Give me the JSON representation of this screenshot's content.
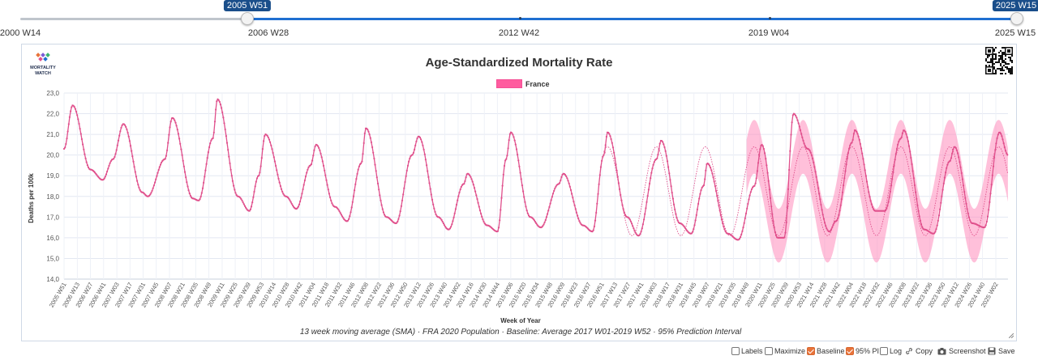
{
  "slider": {
    "start_value": "2005 W51",
    "end_value": "2025 W15",
    "axis_labels": [
      "2000 W14",
      "2006 W28",
      "2012 W42",
      "2019 W04",
      "2025 W15"
    ]
  },
  "logo": {
    "line1": "MORTALITY",
    "line2": "WATCH"
  },
  "footer_controls": {
    "labels": "Labels",
    "maximize": "Maximize",
    "baseline": "Baseline",
    "pi": "95% PI",
    "log": "Log",
    "copy": "Copy",
    "screenshot": "Screenshot",
    "save": "Save",
    "baseline_checked": true,
    "pi_checked": true
  },
  "colors": {
    "series": "#e0508c",
    "band": "#ff8cbc",
    "accent": "#1f6fd1",
    "checkbox": "#e8733a"
  },
  "chart_data": {
    "type": "line",
    "title": "Age-Standardized Mortality Rate",
    "subtitle": "13 week moving average (SMA) · FRA 2020 Population · Baseline: Average 2017 W01-2019 W52 · 95% Prediction Interval",
    "xlabel": "Week of Year",
    "ylabel": "Deaths per 100k",
    "ylim": [
      14.0,
      23.0
    ],
    "yticks": [
      "14,0",
      "15,0",
      "16,0",
      "17,0",
      "18,0",
      "19,0",
      "20,0",
      "21,0",
      "22,0",
      "23,0"
    ],
    "grid": true,
    "legend_position": "top-center",
    "x_start": "2005 W51",
    "x_end": "2025 W15",
    "xtick_labels": [
      "2005 W51",
      "2006 W13",
      "2006 W27",
      "2006 W41",
      "2007 W03",
      "2007 W17",
      "2007 W31",
      "2007 W45",
      "2008 W07",
      "2008 W21",
      "2008 W35",
      "2008 W49",
      "2009 W11",
      "2009 W25",
      "2009 W39",
      "2009 W53",
      "2010 W14",
      "2010 W28",
      "2010 W42",
      "2011 W04",
      "2011 W18",
      "2011 W32",
      "2011 W46",
      "2012 W08",
      "2012 W22",
      "2012 W36",
      "2012 W50",
      "2013 W12",
      "2013 W26",
      "2013 W40",
      "2014 W02",
      "2014 W16",
      "2014 W30",
      "2014 W44",
      "2015 W06",
      "2015 W20",
      "2015 W34",
      "2015 W48",
      "2016 W09",
      "2016 W23",
      "2016 W37",
      "2016 W51",
      "2017 W13",
      "2017 W27",
      "2017 W41",
      "2018 W03",
      "2018 W17",
      "2018 W31",
      "2018 W45",
      "2019 W07",
      "2019 W21",
      "2019 W35",
      "2019 W49",
      "2020 W11",
      "2020 W25",
      "2020 W39",
      "2020 W53",
      "2021 W14",
      "2021 W28",
      "2021 W42",
      "2022 W04",
      "2022 W18",
      "2022 W32",
      "2022 W46",
      "2023 W08",
      "2023 W22",
      "2023 W36",
      "2023 W50",
      "2024 W12",
      "2024 W26",
      "2024 W40",
      "2025 W02"
    ],
    "series": [
      {
        "name": "France",
        "keypoints": [
          [
            "2005 W51",
            20.3
          ],
          [
            "2006 W08",
            22.4
          ],
          [
            "2006 W27",
            19.3
          ],
          [
            "2006 W40",
            18.8
          ],
          [
            "2006 W51",
            19.8
          ],
          [
            "2007 W10",
            21.5
          ],
          [
            "2007 W30",
            18.2
          ],
          [
            "2007 W36",
            18.0
          ],
          [
            "2008 W02",
            19.8
          ],
          [
            "2008 W10",
            21.8
          ],
          [
            "2008 W32",
            17.9
          ],
          [
            "2008 W38",
            17.8
          ],
          [
            "2009 W01",
            20.8
          ],
          [
            "2009 W06",
            22.7
          ],
          [
            "2009 W28",
            18.0
          ],
          [
            "2009 W40",
            17.3
          ],
          [
            "2009 W50",
            19.0
          ],
          [
            "2010 W05",
            21.0
          ],
          [
            "2010 W27",
            18.0
          ],
          [
            "2010 W38",
            17.4
          ],
          [
            "2011 W01",
            19.5
          ],
          [
            "2011 W07",
            20.5
          ],
          [
            "2011 W27",
            17.5
          ],
          [
            "2011 W40",
            16.8
          ],
          [
            "2012 W03",
            19.6
          ],
          [
            "2012 W08",
            21.3
          ],
          [
            "2012 W30",
            17.0
          ],
          [
            "2012 W40",
            16.7
          ],
          [
            "2013 W05",
            20.0
          ],
          [
            "2013 W12",
            20.9
          ],
          [
            "2013 W33",
            17.0
          ],
          [
            "2013 W44",
            16.4
          ],
          [
            "2014 W08",
            18.6
          ],
          [
            "2014 W12",
            19.1
          ],
          [
            "2014 W33",
            16.6
          ],
          [
            "2014 W44",
            16.3
          ],
          [
            "2015 W01",
            19.8
          ],
          [
            "2015 W06",
            21.1
          ],
          [
            "2015 W27",
            17.0
          ],
          [
            "2015 W38",
            16.5
          ],
          [
            "2016 W05",
            18.6
          ],
          [
            "2016 W10",
            19.1
          ],
          [
            "2016 W31",
            16.6
          ],
          [
            "2016 W41",
            16.3
          ],
          [
            "2017 W01",
            20.0
          ],
          [
            "2017 W05",
            21.1
          ],
          [
            "2017 W26",
            17.0
          ],
          [
            "2017 W38",
            16.1
          ],
          [
            "2018 W05",
            19.8
          ],
          [
            "2018 W10",
            20.7
          ],
          [
            "2018 W30",
            16.7
          ],
          [
            "2018 W42",
            16.2
          ],
          [
            "2019 W03",
            18.5
          ],
          [
            "2019 W07",
            19.6
          ],
          [
            "2019 W29",
            16.2
          ],
          [
            "2019 W40",
            15.9
          ],
          [
            "2020 W05",
            18.5
          ],
          [
            "2020 W13",
            20.5
          ],
          [
            "2020 W30",
            16.0
          ],
          [
            "2020 W37",
            16.0
          ],
          [
            "2020 W47",
            22.0
          ],
          [
            "2021 W10",
            20.3
          ],
          [
            "2021 W33",
            16.3
          ],
          [
            "2021 W40",
            16.8
          ],
          [
            "2022 W05",
            20.6
          ],
          [
            "2022 W08",
            21.2
          ],
          [
            "2022 W30",
            17.3
          ],
          [
            "2022 W40",
            17.3
          ],
          [
            "2023 W05",
            20.8
          ],
          [
            "2023 W08",
            21.2
          ],
          [
            "2023 W30",
            16.4
          ],
          [
            "2023 W40",
            16.2
          ],
          [
            "2024 W05",
            19.7
          ],
          [
            "2024 W10",
            20.4
          ],
          [
            "2024 W29",
            16.7
          ],
          [
            "2024 W42",
            16.5
          ],
          [
            "2025 W06",
            21.1
          ],
          [
            "2025 W15",
            20.0
          ]
        ]
      }
    ],
    "baseline": {
      "name": "Baseline",
      "peak": 20.4,
      "trough": 16.1,
      "peak_week": 5
    },
    "prediction_interval": {
      "name": "95% PI",
      "half_width": 1.3,
      "from": "2019 W49"
    }
  }
}
